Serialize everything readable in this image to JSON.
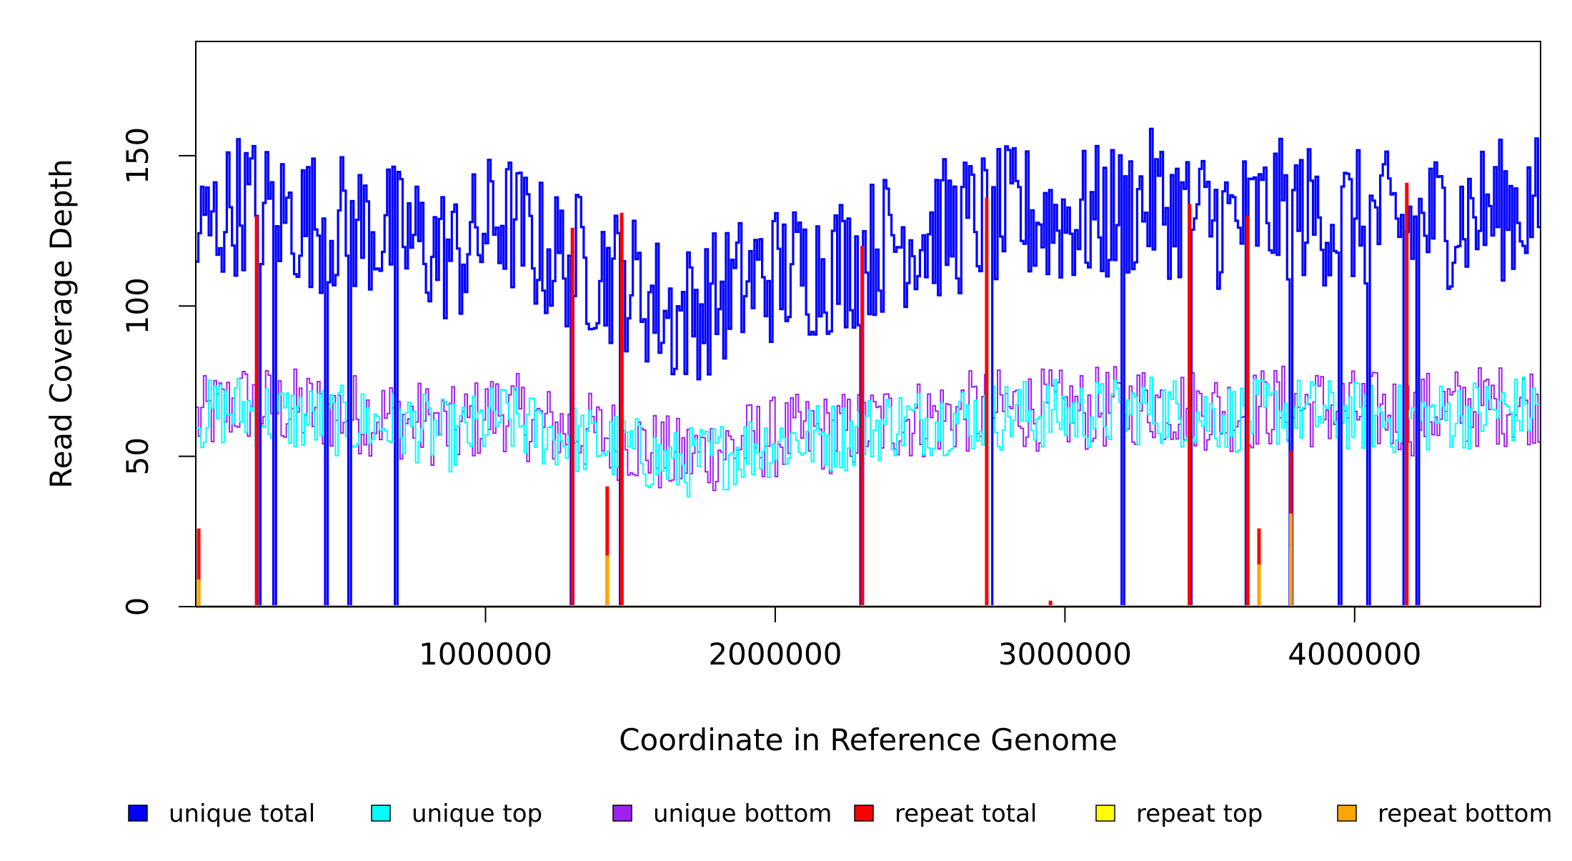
{
  "chart_data": {
    "type": "line",
    "title": "",
    "xlabel": "Coordinate in Reference Genome",
    "ylabel": "Read Coverage Depth",
    "xlim": [
      1,
      4641652
    ],
    "ylim": [
      0,
      188
    ],
    "x_ticks": [
      1000000,
      2000000,
      3000000,
      4000000
    ],
    "x_tick_labels": [
      "1000000",
      "2000000",
      "3000000",
      "4000000"
    ],
    "y_ticks": [
      0,
      50,
      100,
      150
    ],
    "y_tick_labels": [
      "0",
      "50",
      "100",
      "150"
    ],
    "grid": false,
    "legend_position": "bottom",
    "series": [
      {
        "name": "unique total",
        "color": "#0000ff",
        "x": [
          10000,
          150000,
          300000,
          450000,
          600000,
          750000,
          900000,
          1050000,
          1200000,
          1350000,
          1500000,
          1650000,
          1800000,
          1950000,
          2100000,
          2250000,
          2400000,
          2550000,
          2700000,
          2850000,
          3000000,
          3150000,
          3300000,
          3450000,
          3600000,
          3750000,
          3900000,
          4050000,
          4200000,
          4350000,
          4500000,
          4640000
        ],
        "values": [
          123,
          135,
          130,
          128,
          126,
          122,
          116,
          130,
          118,
          114,
          108,
          96,
          102,
          110,
          112,
          115,
          122,
          125,
          128,
          130,
          129,
          130,
          135,
          130,
          128,
          132,
          130,
          128,
          127,
          130,
          132,
          134
        ]
      },
      {
        "name": "unique top",
        "color": "#00ffff",
        "x": [
          10000,
          150000,
          300000,
          450000,
          600000,
          750000,
          900000,
          1050000,
          1200000,
          1350000,
          1500000,
          1650000,
          1800000,
          1950000,
          2100000,
          2250000,
          2400000,
          2550000,
          2700000,
          2850000,
          3000000,
          3150000,
          3300000,
          3450000,
          3600000,
          3750000,
          3900000,
          4050000,
          4200000,
          4350000,
          4500000,
          4640000
        ],
        "values": [
          63,
          66,
          63,
          62,
          61,
          60,
          56,
          63,
          58,
          55,
          52,
          47,
          50,
          54,
          56,
          57,
          61,
          62,
          63,
          64,
          64,
          64,
          66,
          64,
          63,
          65,
          64,
          63,
          62,
          64,
          65,
          66
        ]
      },
      {
        "name": "unique bottom",
        "color": "#a020f0",
        "x": [
          10000,
          150000,
          300000,
          450000,
          600000,
          750000,
          900000,
          1050000,
          1200000,
          1350000,
          1500000,
          1650000,
          1800000,
          1950000,
          2100000,
          2250000,
          2400000,
          2550000,
          2700000,
          2850000,
          3000000,
          3150000,
          3300000,
          3450000,
          3600000,
          3750000,
          3900000,
          4050000,
          4200000,
          4350000,
          4500000,
          4640000
        ],
        "values": [
          62,
          68,
          66,
          65,
          64,
          62,
          59,
          66,
          60,
          58,
          55,
          49,
          52,
          56,
          57,
          58,
          62,
          63,
          65,
          66,
          65,
          66,
          68,
          66,
          65,
          67,
          66,
          65,
          64,
          66,
          67,
          68
        ]
      },
      {
        "name": "repeat total",
        "color": "#ff0000",
        "x": [
          10000,
          210000,
          1300000,
          1420000,
          1470000,
          2300000,
          2730000,
          2950000,
          3430000,
          3630000,
          3670000,
          3780000,
          4180000
        ],
        "values": [
          26,
          130,
          126,
          40,
          131,
          120,
          136,
          2,
          134,
          130,
          26,
          52,
          141
        ]
      },
      {
        "name": "repeat top",
        "color": "#ffff00",
        "x": [
          10000,
          1420000,
          3670000,
          3780000
        ],
        "values": [
          9,
          17,
          14,
          20
        ]
      },
      {
        "name": "repeat bottom",
        "color": "#ffa500",
        "x": [
          10000,
          1420000,
          3670000,
          3780000
        ],
        "values": [
          9,
          17,
          14,
          31
        ]
      }
    ],
    "dropouts_x": [
      220000,
      270000,
      450000,
      530000,
      690000,
      1300000,
      1470000,
      2300000,
      2740000,
      3200000,
      3430000,
      3630000,
      3780000,
      3950000,
      4050000,
      4170000,
      4220000
    ],
    "legend_entries": [
      {
        "label": "unique total",
        "color": "#0000ff"
      },
      {
        "label": "unique top",
        "color": "#00ffff"
      },
      {
        "label": "unique bottom",
        "color": "#a020f0"
      },
      {
        "label": "repeat total",
        "color": "#ff0000"
      },
      {
        "label": "repeat top",
        "color": "#ffff00"
      },
      {
        "label": "repeat bottom",
        "color": "#ffa500"
      }
    ]
  }
}
